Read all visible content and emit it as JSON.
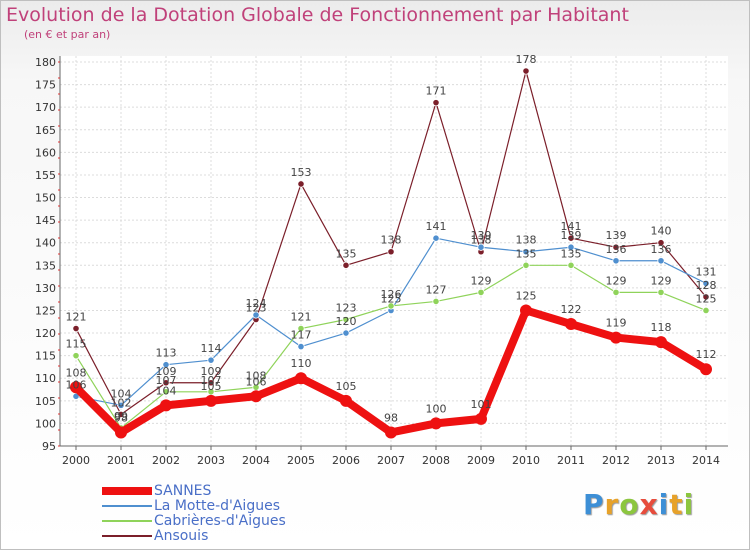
{
  "header": {
    "title": "Evolution de la Dotation Globale de Fonctionnement par Habitant",
    "subtitle": "(en € et par an)"
  },
  "logo": {
    "letters": [
      "P",
      "r",
      "o",
      "x",
      "i",
      "t",
      "i"
    ],
    "colors": [
      "#3d8fd6",
      "#e7a22a",
      "#8cc63f",
      "#e74c3c",
      "#3d8fd6",
      "#e7a22a",
      "#8cc63f"
    ]
  },
  "chart_data": {
    "type": "line",
    "title": "Evolution de la Dotation Globale de Fonctionnement par Habitant",
    "subtitle": "(en € et par an)",
    "xlabel": "",
    "ylabel": "",
    "x": [
      "2000",
      "2001",
      "2002",
      "2003",
      "2004",
      "2005",
      "2006",
      "2007",
      "2008",
      "2009",
      "2010",
      "2011",
      "2012",
      "2013",
      "2014"
    ],
    "ylim": [
      95,
      180
    ],
    "yticks": [
      95,
      100,
      105,
      110,
      115,
      120,
      125,
      130,
      135,
      140,
      145,
      150,
      155,
      160,
      165,
      170,
      175,
      180
    ],
    "grid": true,
    "legend_position": "bottom-left",
    "series": [
      {
        "name": "Ansouis",
        "color": "#7b1f2a",
        "values": [
          121,
          102,
          109,
          109,
          123,
          153,
          135,
          138,
          171,
          138,
          178,
          141,
          139,
          140,
          128
        ]
      },
      {
        "name": "La Motte-d'Aigues",
        "color": "#4f8fcf",
        "values": [
          106,
          104,
          113,
          114,
          124,
          117,
          120,
          125,
          141,
          139,
          138,
          139,
          136,
          136,
          131
        ]
      },
      {
        "name": "Cabrières-d'Aigues",
        "color": "#8fd35a",
        "values": [
          115,
          99,
          107,
          107,
          108,
          121,
          123,
          126,
          127,
          129,
          135,
          135,
          129,
          129,
          125
        ]
      },
      {
        "name": "SANNES",
        "color": "#ee1111",
        "values": [
          108,
          98,
          104,
          105,
          106,
          110,
          105,
          98,
          100,
          101,
          125,
          122,
          119,
          118,
          112
        ]
      }
    ],
    "legend": [
      "SANNES",
      "La Motte-d'Aigues",
      "Cabrières-d'Aigues",
      "Ansouis"
    ]
  }
}
